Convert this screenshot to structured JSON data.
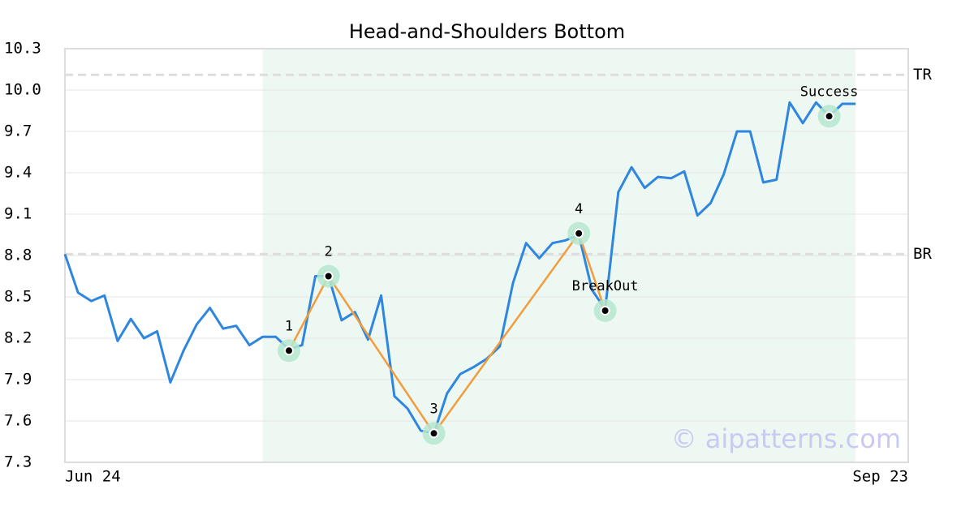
{
  "chart_data": {
    "type": "line",
    "title": "Head-and-Shoulders Bottom",
    "watermark": "© aipatterns.com",
    "values": [
      8.81,
      8.53,
      8.47,
      8.51,
      8.18,
      8.34,
      8.2,
      8.25,
      7.88,
      8.11,
      8.3,
      8.42,
      8.27,
      8.29,
      8.15,
      8.21,
      8.21,
      8.12,
      8.15,
      8.65,
      8.65,
      8.33,
      8.39,
      8.19,
      8.51,
      7.78,
      7.69,
      7.53,
      7.51,
      7.8,
      7.94,
      7.99,
      8.05,
      8.14,
      8.6,
      8.89,
      8.78,
      8.89,
      8.91,
      8.95,
      8.55,
      8.41,
      9.26,
      9.44,
      9.29,
      9.37,
      9.36,
      9.41,
      9.09,
      9.18,
      9.39,
      9.7,
      9.7,
      9.33,
      9.35,
      9.91,
      9.76,
      9.91,
      9.81,
      9.9,
      9.9
    ],
    "color": "#2e86de",
    "xlim": [
      0,
      64
    ],
    "xticks": [
      {
        "value": 0,
        "label": "Jun 24"
      },
      {
        "value": 64,
        "label": "Sep 23"
      }
    ],
    "ylim": [
      7.3,
      10.3
    ],
    "yticks": [
      7.3,
      7.6,
      7.9,
      8.2,
      8.5,
      8.8,
      9.1,
      9.4,
      9.7,
      {
        "value": 10,
        "label": "10.0"
      },
      10.3
    ],
    "grid": true,
    "highlight": [
      15,
      60
    ],
    "pattern_color": "#f39c3c",
    "points": [
      {
        "label": "1",
        "x": 17,
        "value": 8.11
      },
      {
        "label": "2",
        "x": 20,
        "value": 8.65
      },
      {
        "label": "3",
        "x": 28,
        "value": 7.51
      },
      {
        "label": "4",
        "x": 39,
        "value": 8.96
      },
      {
        "label": "BreakOut",
        "x": 41,
        "value": 8.4
      },
      {
        "label": "Success",
        "x": 58,
        "value": 9.81
      }
    ],
    "hlines": [
      {
        "label": "TR",
        "value": 10.11
      },
      {
        "label": "BR",
        "value": 8.81
      }
    ]
  }
}
